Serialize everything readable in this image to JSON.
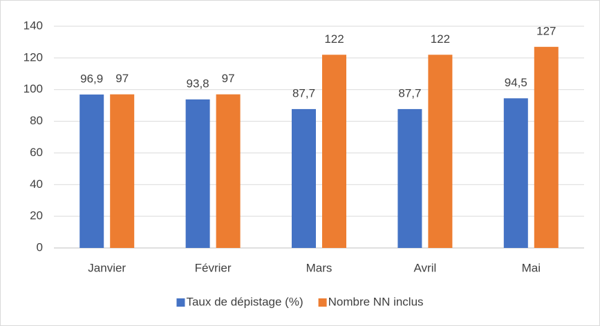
{
  "chart_data": {
    "type": "bar",
    "categories": [
      "Janvier",
      "Février",
      "Mars",
      "Avril",
      "Mai"
    ],
    "series": [
      {
        "name": "Taux de dépistage (%)",
        "color": "#4472c4",
        "values": [
          96.9,
          93.8,
          87.7,
          87.7,
          94.5
        ],
        "value_labels": [
          "96,9",
          "93,8",
          "87,7",
          "87,7",
          "94,5"
        ]
      },
      {
        "name": "Nombre NN inclus",
        "color": "#ed7d31",
        "values": [
          97,
          97,
          122,
          122,
          127
        ]
      }
    ],
    "ylim": [
      0,
      140
    ],
    "yticks": [
      0,
      20,
      40,
      60,
      80,
      100,
      120,
      140
    ],
    "grid": true,
    "legend": "bottom"
  }
}
